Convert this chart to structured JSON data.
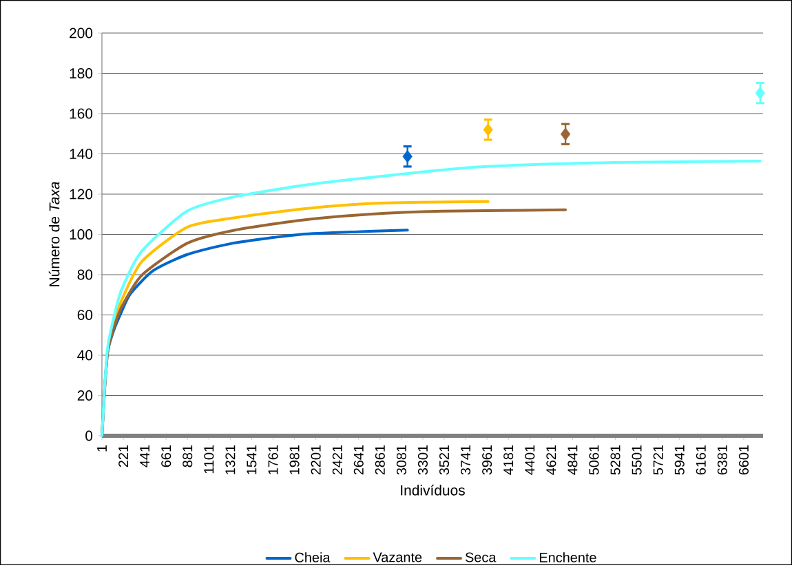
{
  "chart_data": {
    "type": "line",
    "xlabel": "Indivíduos",
    "ylabel": "Número de *Taxa*",
    "xlim": [
      1,
      6800
    ],
    "ylim": [
      0,
      200
    ],
    "xticks": [
      1,
      221,
      441,
      661,
      881,
      1101,
      1321,
      1541,
      1761,
      1981,
      2201,
      2421,
      2641,
      2861,
      3081,
      3301,
      3521,
      3741,
      3961,
      4181,
      4401,
      4621,
      4841,
      5061,
      5281,
      5501,
      5721,
      5941,
      6161,
      6381,
      6601
    ],
    "yticks": [
      0,
      20,
      40,
      60,
      80,
      100,
      120,
      140,
      160,
      180,
      200
    ],
    "grid": "y",
    "legend": "bottom",
    "line_style": "solid",
    "marker": "none",
    "series": [
      {
        "name": "Cheia",
        "color": "#0066cc",
        "x": [
          1,
          31,
          61,
          120,
          201,
          294,
          528,
          878,
          1345,
          2046,
          2746,
          3143
        ],
        "values": [
          0,
          25,
          42,
          52,
          61.4,
          70.5,
          82,
          90,
          95.6,
          100,
          101.5,
          102.1
        ]
      },
      {
        "name": "Vazante",
        "color": "#ffc000",
        "x": [
          61,
          120,
          201,
          411,
          878,
          1345,
          2046,
          2746,
          3300,
          3972
        ],
        "values": [
          43,
          55,
          67,
          86.5,
          103.6,
          108.1,
          112.6,
          115.3,
          116,
          116.3
        ]
      },
      {
        "name": "Seca",
        "color": "#996633",
        "x": [
          1,
          31,
          61,
          120,
          201,
          411,
          878,
          1345,
          2046,
          2746,
          3500,
          4768
        ],
        "values": [
          0,
          25,
          42,
          53,
          63.7,
          79.7,
          95.6,
          101.9,
          107,
          110,
          111.5,
          112.2
        ]
      },
      {
        "name": "Enchente",
        "color": "#66ffff",
        "x": [
          1,
          31,
          61,
          120,
          201,
          411,
          878,
          1345,
          2046,
          2746,
          3867,
          5269,
          6770
        ],
        "values": [
          0,
          26,
          44.3,
          58,
          72.3,
          91.7,
          111.6,
          118.5,
          124.2,
          128.2,
          133.5,
          135.7,
          136.4
        ]
      },
      {
        "type": "scatter",
        "marker": "diamond",
        "x": [
          3143,
          3972,
          4768,
          6770
        ],
        "values": [
          138.7,
          152,
          149.8,
          170.2
        ],
        "errors": [
          5,
          5,
          5,
          5
        ],
        "colors": [
          "#0066cc",
          "#ffc000",
          "#996633",
          "#66ffff"
        ]
      }
    ]
  }
}
